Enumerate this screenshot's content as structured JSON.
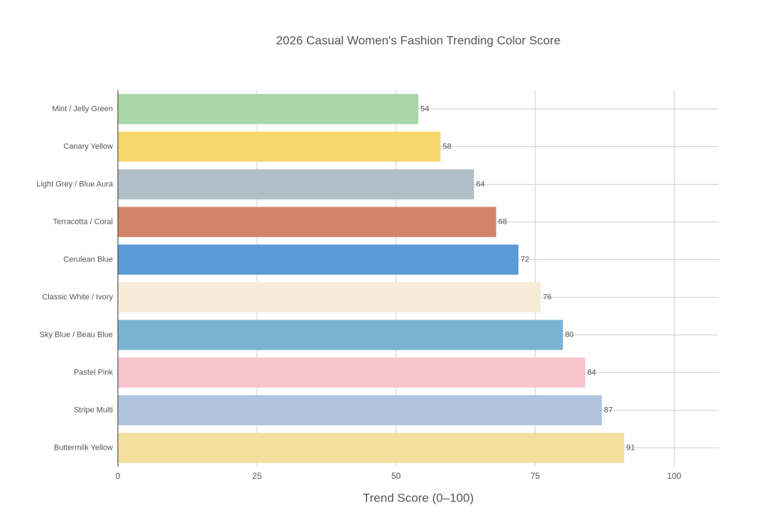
{
  "chart_data": {
    "type": "hbar",
    "title": "2026 Casual Women's Fashion Trending Color Score",
    "xlabel": "Trend Score (0–100)",
    "categories": [
      "Mint / Jelly Green",
      "Canary Yellow",
      "Light Grey / Blue Aura",
      "Terracotta / Coral",
      "Cerulean Blue",
      "Classic White / Ivory",
      "Sky Blue / Beau Blue",
      "Pastel Pink",
      "Stripe Multi",
      "Buttermilk Yellow"
    ],
    "values": [
      54,
      58,
      64,
      68,
      72,
      76,
      80,
      84,
      87,
      91
    ],
    "colors": [
      "#a8d8a8",
      "#f5d76e",
      "#b0bec5",
      "#d4826a",
      "#5b9bd5",
      "#f5ecd7",
      "#7ab3d1",
      "#f7c5cc",
      "#b0c4de",
      "#f5df9e"
    ],
    "xlim": [
      0,
      108
    ],
    "xticks": [
      0,
      25,
      50,
      75,
      100
    ],
    "grid": true
  }
}
